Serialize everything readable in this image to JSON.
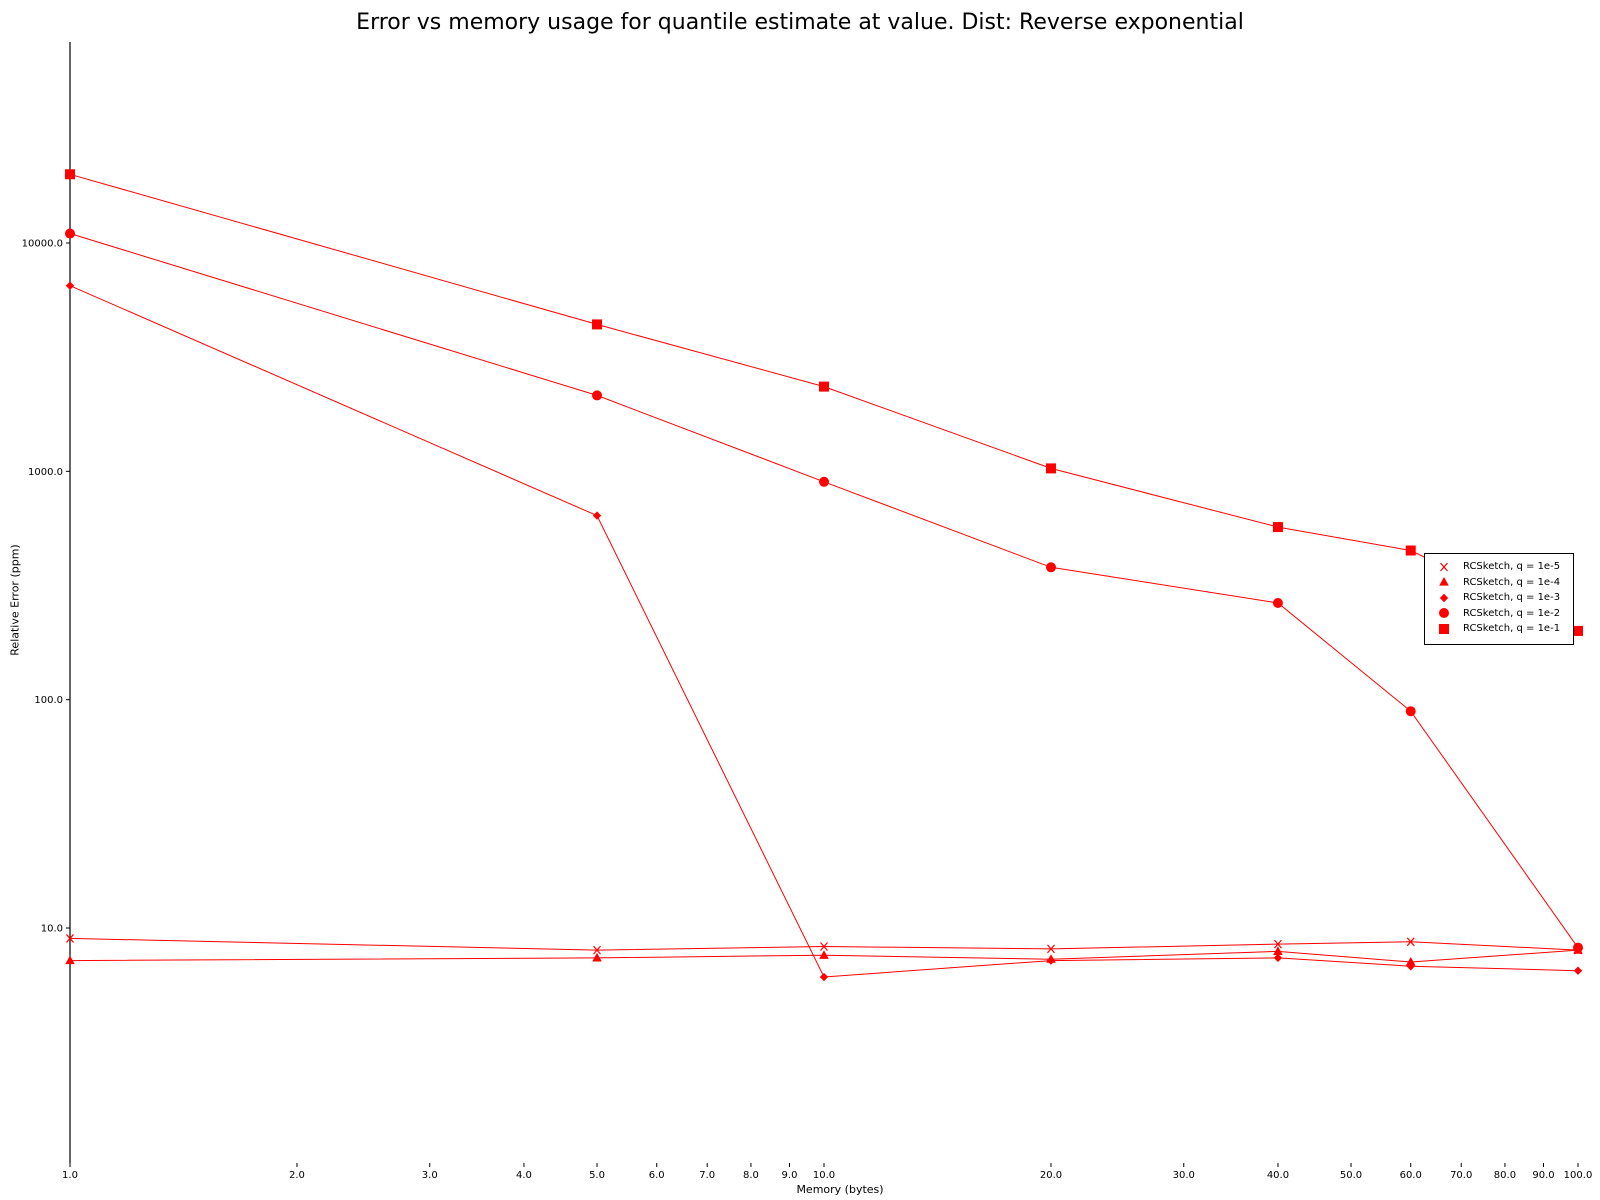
{
  "chart_data": {
    "type": "line",
    "title": "Error vs memory usage for quantile estimate at value. Dist: Reverse exponential",
    "xlabel": "Memory (bytes)",
    "ylabel": "Relative Error (ppm)",
    "xscale": "log",
    "yscale": "log",
    "xlim": [
      1,
      100
    ],
    "ylim": [
      1,
      70000
    ],
    "x_ticks": [
      "1.0",
      "2.0",
      "3.0",
      "4.0",
      "5.0",
      "6.0",
      "7.0",
      "8.0",
      "9.0",
      "10.0",
      "20.0",
      "30.0",
      "40.0",
      "50.0",
      "60.0",
      "70.0",
      "80.0",
      "90.0",
      "100.0"
    ],
    "y_ticks": [
      "10.0",
      "100.0",
      "1000.0",
      "10000.0"
    ],
    "grid": false,
    "legend_position": "right",
    "color": "#ff0000",
    "x": [
      1,
      5,
      10,
      20,
      40,
      60,
      100
    ],
    "series": [
      {
        "name": "RCSketch, q = 1e-5",
        "marker": "x",
        "values": [
          9.0,
          8.0,
          8.3,
          8.1,
          8.5,
          8.7,
          8.0
        ]
      },
      {
        "name": "RCSketch, q = 1e-4",
        "marker": "triangle",
        "values": [
          7.2,
          7.4,
          7.6,
          7.3,
          7.9,
          7.1,
          8.0
        ]
      },
      {
        "name": "RCSketch, q = 1e-3",
        "marker": "diamond",
        "values": [
          6500,
          640,
          null,
          7.2,
          7.4,
          6.8,
          6.5
        ]
      },
      {
        "name": "RCSketch, q = 1e-2",
        "marker": "circle",
        "values": [
          11000,
          2150,
          900,
          380,
          265,
          89,
          8.2
        ]
      },
      {
        "name": "RCSketch, q = 1e-1",
        "marker": "square",
        "values": [
          20000,
          4400,
          2350,
          1030,
          570,
          450,
          200
        ]
      }
    ],
    "extra_points": [
      {
        "series": 2,
        "x": 10,
        "y": 6.1
      }
    ]
  }
}
